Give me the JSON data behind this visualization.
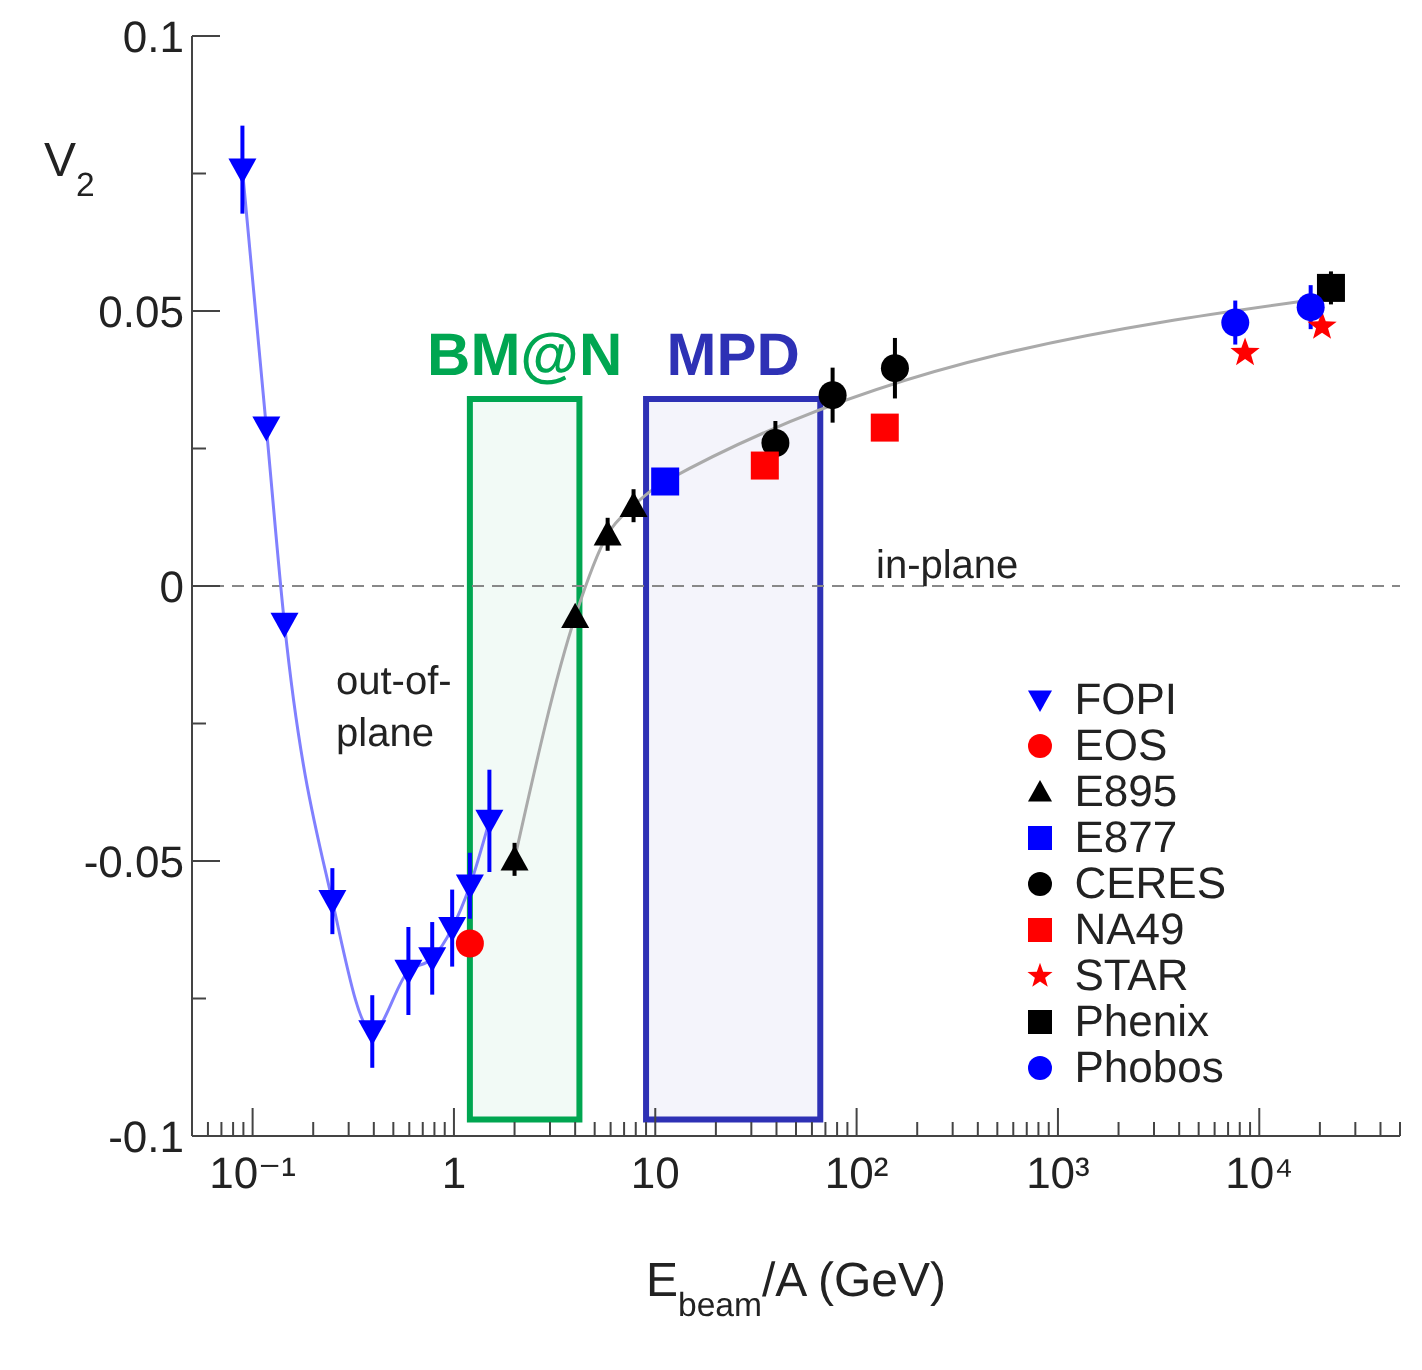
{
  "chart_data": {
    "type": "scatter",
    "xlabel": "E$_{beam}$/A (GeV)",
    "ylabel": "V$_{2}$",
    "log": "x",
    "grid": false,
    "legend": "right",
    "xlim": [
      0.05,
      50000
    ],
    "ylim": [
      -0.1,
      0.1
    ],
    "xticks": [
      {
        "value": 0.05,
        "label": null
      },
      {
        "value": 0.06,
        "label": null
      },
      {
        "value": 0.07,
        "label": null
      },
      {
        "value": 0.08,
        "label": null
      },
      {
        "value": 0.09,
        "label": null
      },
      {
        "value": 0.1,
        "label": "10⁻¹"
      },
      {
        "value": 0.2,
        "label": null
      },
      {
        "value": 0.3,
        "label": null
      },
      {
        "value": 0.4,
        "label": null
      },
      {
        "value": 0.5,
        "label": null
      },
      {
        "value": 0.6,
        "label": null
      },
      {
        "value": 0.7,
        "label": null
      },
      {
        "value": 0.8,
        "label": null
      },
      {
        "value": 0.9,
        "label": null
      },
      {
        "value": 1,
        "label": "1"
      },
      {
        "value": 2,
        "label": null
      },
      {
        "value": 3,
        "label": null
      },
      {
        "value": 4,
        "label": null
      },
      {
        "value": 5,
        "label": null
      },
      {
        "value": 6,
        "label": null
      },
      {
        "value": 7,
        "label": null
      },
      {
        "value": 8,
        "label": null
      },
      {
        "value": 9,
        "label": null
      },
      {
        "value": 10,
        "label": "10"
      },
      {
        "value": 20,
        "label": null
      },
      {
        "value": 30,
        "label": null
      },
      {
        "value": 40,
        "label": null
      },
      {
        "value": 50,
        "label": null
      },
      {
        "value": 60,
        "label": null
      },
      {
        "value": 70,
        "label": null
      },
      {
        "value": 80,
        "label": null
      },
      {
        "value": 90,
        "label": null
      },
      {
        "value": 100,
        "label": "10²"
      },
      {
        "value": 200,
        "label": null
      },
      {
        "value": 300,
        "label": null
      },
      {
        "value": 400,
        "label": null
      },
      {
        "value": 500,
        "label": null
      },
      {
        "value": 600,
        "label": null
      },
      {
        "value": 700,
        "label": null
      },
      {
        "value": 800,
        "label": null
      },
      {
        "value": 900,
        "label": null
      },
      {
        "value": 1000,
        "label": "10³"
      },
      {
        "value": 2000,
        "label": null
      },
      {
        "value": 3000,
        "label": null
      },
      {
        "value": 4000,
        "label": null
      },
      {
        "value": 5000,
        "label": null
      },
      {
        "value": 6000,
        "label": null
      },
      {
        "value": 7000,
        "label": null
      },
      {
        "value": 8000,
        "label": null
      },
      {
        "value": 9000,
        "label": null
      },
      {
        "value": 10000,
        "label": "10⁴"
      },
      {
        "value": 20000,
        "label": null
      },
      {
        "value": 30000,
        "label": null
      },
      {
        "value": 40000,
        "label": null
      },
      {
        "value": 50000,
        "label": null
      }
    ],
    "yticks": [
      -0.1,
      {
        "value": -0.075,
        "label": null
      },
      -0.05,
      {
        "value": -0.025,
        "label": null
      },
      0,
      {
        "value": 0.025,
        "label": null
      },
      0.05,
      {
        "value": 0.075,
        "label": null
      },
      0.1
    ],
    "ref_lines": [
      {
        "axis": "y",
        "value": 0,
        "color": "#888888",
        "line_style": "dashed"
      }
    ],
    "bands": [
      {
        "axis": "x",
        "from": 1.2,
        "to": 4.2,
        "label": "BM@N",
        "color": "#00a651"
      },
      {
        "axis": "x",
        "from": 9,
        "to": 66,
        "label": "MPD",
        "color": "#2e31b5"
      }
    ],
    "annotations": [
      "out-of-plane",
      "in-plane"
    ],
    "series": [
      {
        "type": "line",
        "color": "#8080ff",
        "marker": "none",
        "x": [
          0.089,
          0.117,
          0.144,
          0.249,
          0.393,
          0.594,
          0.78,
          0.98,
          1.2,
          1.5
        ],
        "values": [
          0.0757,
          0.0288,
          -0.0069,
          -0.0573,
          -0.081,
          -0.07,
          -0.0677,
          -0.0622,
          -0.0545,
          -0.0427
        ]
      },
      {
        "type": "line",
        "color": "#aaaaaa",
        "marker": "none",
        "x": [
          2,
          4,
          5.8,
          7.8,
          11.2,
          22700
        ],
        "values": [
          -0.0497,
          -0.0056,
          0.0094,
          0.0146,
          0.019,
          0.0525
        ]
      },
      {
        "name": "FOPI",
        "marker": "triangle-down",
        "color": "#0000ff",
        "x": [
          0.089,
          0.117,
          0.144,
          0.249,
          0.393,
          0.594,
          0.78,
          0.98,
          1.2,
          1.5
        ],
        "values": [
          0.0757,
          0.0288,
          -0.0069,
          -0.0573,
          -0.081,
          -0.07,
          -0.0677,
          -0.0622,
          -0.0545,
          -0.0427
        ],
        "errors": [
          0.008,
          null,
          null,
          0.006,
          0.0066,
          0.008,
          0.0066,
          0.007,
          0.006,
          0.0093
        ]
      },
      {
        "name": "EOS",
        "marker": "circle",
        "color": "#ff0000",
        "x": [
          1.2
        ],
        "values": [
          -0.065
        ]
      },
      {
        "name": "E895",
        "marker": "triangle",
        "color": "#000000",
        "x": [
          2,
          4,
          5.8,
          7.8
        ],
        "values": [
          -0.0497,
          -0.0056,
          0.0094,
          0.0146
        ],
        "errors": [
          0.003,
          null,
          0.003,
          0.003
        ]
      },
      {
        "name": "E877",
        "marker": "square",
        "color": "#0000ff",
        "x": [
          11.2
        ],
        "values": [
          0.019
        ]
      },
      {
        "name": "CERES",
        "marker": "circle",
        "color": "#000000",
        "x": [
          39.5,
          76,
          155
        ],
        "values": [
          0.026,
          0.0347,
          0.0396
        ],
        "errors": [
          0.004,
          0.005,
          0.0055
        ]
      },
      {
        "name": "NA49",
        "marker": "square",
        "color": "#ff0000",
        "x": [
          35,
          138
        ],
        "values": [
          0.0219,
          0.0288
        ]
      },
      {
        "name": "STAR",
        "marker": "star",
        "color": "#ff0000",
        "x": [
          8500,
          20500
        ],
        "values": [
          0.0424,
          0.0472
        ]
      },
      {
        "name": "Phenix",
        "marker": "square",
        "color": "#000000",
        "x": [
          22700
        ],
        "values": [
          0.0542
        ],
        "errors": [
          0.003
        ]
      },
      {
        "name": "Phobos",
        "marker": "circle",
        "color": "#0000ff",
        "x": [
          7600,
          18000
        ],
        "values": [
          0.0479,
          0.0507
        ],
        "errors": [
          0.004,
          0.004
        ]
      }
    ]
  }
}
